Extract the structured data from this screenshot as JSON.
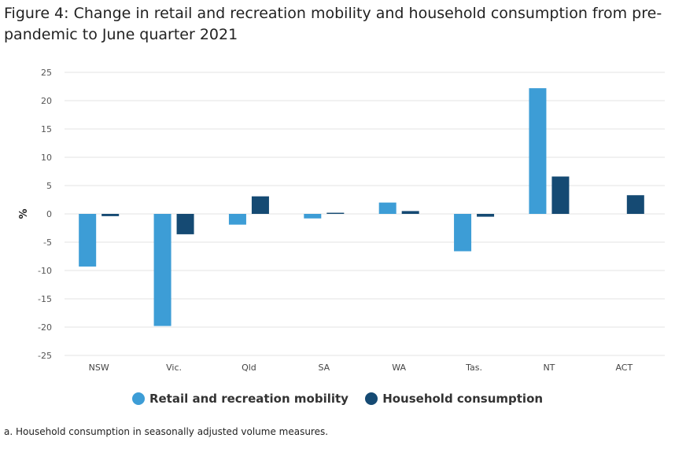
{
  "title": "Figure 4: Change in retail and recreation mobility and household consumption from pre-pandemic to June quarter 2021",
  "footnote": "a. Household consumption in seasonally adjusted volume measures.",
  "colors": {
    "retail": "#3d9dd6",
    "household": "#154a73",
    "grid": "#e3e3e3"
  },
  "chart_data": {
    "type": "bar",
    "title": "Figure 4: Change in retail and recreation mobility and household consumption from pre-pandemic to June quarter 2021",
    "xlabel": "",
    "ylabel": "%",
    "ylim": [
      -25,
      25
    ],
    "yticks": [
      25,
      20,
      15,
      10,
      5,
      0,
      -5,
      -10,
      -15,
      -20,
      -25
    ],
    "grid": true,
    "legend_position": "bottom",
    "categories": [
      "NSW",
      "Vic.",
      "Qld",
      "SA",
      "WA",
      "Tas.",
      "NT",
      "ACT"
    ],
    "series": [
      {
        "name": "Retail and recreation mobility",
        "values": [
          -9.3,
          -19.8,
          -1.9,
          -0.8,
          2.0,
          -6.6,
          22.2,
          0.0
        ]
      },
      {
        "name": "Household consumption",
        "values": [
          -0.4,
          -3.6,
          3.1,
          0.2,
          0.5,
          -0.5,
          6.6,
          3.3
        ]
      }
    ]
  }
}
